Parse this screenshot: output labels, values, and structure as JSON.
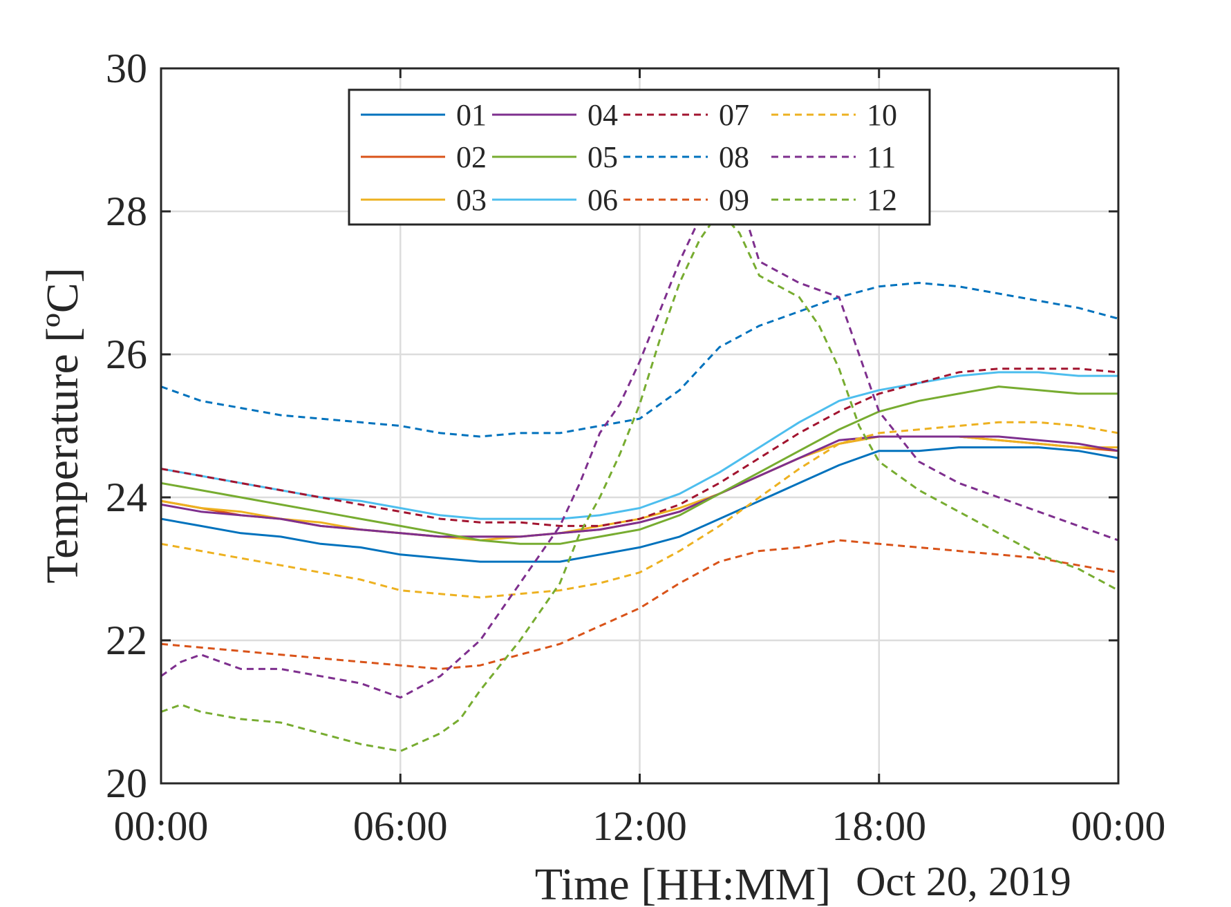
{
  "chart_data": {
    "type": "line",
    "title": "",
    "xlabel": "Time [HH:MM]",
    "xlabel_secondary": "Oct 20, 2019",
    "ylabel": "Temperature [ºC]",
    "x_unit": "hours since 00:00 on Oct 20, 2019",
    "xlim": [
      0,
      24
    ],
    "ylim": [
      20,
      30
    ],
    "x_ticks": [
      0,
      6,
      12,
      18,
      24
    ],
    "x_tick_labels": [
      "00:00",
      "06:00",
      "12:00",
      "18:00",
      "00:00"
    ],
    "y_ticks": [
      20,
      22,
      24,
      26,
      28,
      30
    ],
    "y_tick_labels": [
      "20",
      "22",
      "24",
      "26",
      "28",
      "30"
    ],
    "grid": true,
    "legend_placement": "top-center",
    "legend_columns": 4,
    "series": [
      {
        "name": "01",
        "color": "#0072BD",
        "style": "solid",
        "x": [
          0,
          1,
          2,
          3,
          4,
          5,
          6,
          7,
          8,
          9,
          10,
          11,
          12,
          13,
          14,
          15,
          16,
          17,
          18,
          19,
          20,
          21,
          22,
          23,
          24
        ],
        "y": [
          23.7,
          23.6,
          23.5,
          23.45,
          23.35,
          23.3,
          23.2,
          23.15,
          23.1,
          23.1,
          23.1,
          23.2,
          23.3,
          23.45,
          23.7,
          23.95,
          24.2,
          24.45,
          24.65,
          24.65,
          24.7,
          24.7,
          24.7,
          24.65,
          24.55
        ]
      },
      {
        "name": "02",
        "color": "#D95319",
        "style": "solid",
        "x": [
          0,
          1,
          2,
          3,
          4,
          5,
          6,
          7,
          8,
          9,
          10,
          11,
          12,
          13,
          14,
          15,
          16,
          17,
          18,
          19,
          20,
          21,
          22,
          23,
          24
        ],
        "y": [
          23.95,
          23.85,
          23.75,
          23.7,
          23.6,
          23.55,
          23.5,
          23.45,
          23.45,
          23.45,
          23.5,
          23.55,
          23.65,
          23.8,
          24.05,
          24.3,
          24.55,
          24.75,
          24.85,
          24.85,
          24.85,
          24.8,
          24.75,
          24.7,
          24.65
        ]
      },
      {
        "name": "03",
        "color": "#EDB120",
        "style": "solid",
        "x": [
          0,
          1,
          2,
          3,
          4,
          5,
          6,
          7,
          8,
          9,
          10,
          11,
          12,
          13,
          14,
          15,
          16,
          17,
          18,
          19,
          20,
          21,
          22,
          23,
          24
        ],
        "y": [
          23.95,
          23.85,
          23.8,
          23.7,
          23.65,
          23.55,
          23.5,
          23.45,
          23.4,
          23.45,
          23.5,
          23.6,
          23.7,
          23.85,
          24.05,
          24.3,
          24.55,
          24.75,
          24.85,
          24.85,
          24.85,
          24.8,
          24.75,
          24.7,
          24.7
        ]
      },
      {
        "name": "04",
        "color": "#7E2F8E",
        "style": "solid",
        "x": [
          0,
          1,
          2,
          3,
          4,
          5,
          6,
          7,
          8,
          9,
          10,
          11,
          12,
          13,
          14,
          15,
          16,
          17,
          18,
          19,
          20,
          21,
          22,
          23,
          24
        ],
        "y": [
          23.9,
          23.8,
          23.75,
          23.7,
          23.6,
          23.55,
          23.5,
          23.45,
          23.45,
          23.45,
          23.5,
          23.55,
          23.65,
          23.8,
          24.05,
          24.3,
          24.55,
          24.8,
          24.85,
          24.85,
          24.85,
          24.85,
          24.8,
          24.75,
          24.65
        ]
      },
      {
        "name": "05",
        "color": "#77AC30",
        "style": "solid",
        "x": [
          0,
          1,
          2,
          3,
          4,
          5,
          6,
          7,
          8,
          9,
          10,
          11,
          12,
          13,
          14,
          15,
          16,
          17,
          18,
          19,
          20,
          21,
          22,
          23,
          24
        ],
        "y": [
          24.2,
          24.1,
          24.0,
          23.9,
          23.8,
          23.7,
          23.6,
          23.5,
          23.4,
          23.35,
          23.35,
          23.45,
          23.55,
          23.75,
          24.05,
          24.35,
          24.65,
          24.95,
          25.2,
          25.35,
          25.45,
          25.55,
          25.5,
          25.45,
          25.45
        ]
      },
      {
        "name": "06",
        "color": "#4DBEEE",
        "style": "solid",
        "x": [
          0,
          1,
          2,
          3,
          4,
          5,
          6,
          7,
          8,
          9,
          10,
          11,
          12,
          13,
          14,
          15,
          16,
          17,
          18,
          19,
          20,
          21,
          22,
          23,
          24
        ],
        "y": [
          24.4,
          24.3,
          24.2,
          24.1,
          24.0,
          23.95,
          23.85,
          23.75,
          23.7,
          23.7,
          23.7,
          23.75,
          23.85,
          24.05,
          24.35,
          24.7,
          25.05,
          25.35,
          25.5,
          25.6,
          25.7,
          25.75,
          25.75,
          25.7,
          25.7
        ]
      },
      {
        "name": "07",
        "color": "#A2142F",
        "style": "dashed",
        "x": [
          0,
          1,
          2,
          3,
          4,
          5,
          6,
          7,
          8,
          9,
          10,
          11,
          12,
          13,
          14,
          15,
          16,
          17,
          18,
          19,
          20,
          21,
          22,
          23,
          24
        ],
        "y": [
          24.4,
          24.3,
          24.2,
          24.1,
          24.0,
          23.9,
          23.8,
          23.7,
          23.65,
          23.65,
          23.6,
          23.6,
          23.7,
          23.9,
          24.2,
          24.55,
          24.9,
          25.2,
          25.45,
          25.6,
          25.75,
          25.8,
          25.8,
          25.8,
          25.75
        ]
      },
      {
        "name": "08",
        "color": "#0072BD",
        "style": "dashed",
        "x": [
          0,
          1,
          2,
          3,
          4,
          5,
          6,
          7,
          8,
          9,
          10,
          11,
          12,
          13,
          14,
          15,
          16,
          17,
          18,
          19,
          20,
          21,
          22,
          23,
          24
        ],
        "y": [
          25.55,
          25.35,
          25.25,
          25.15,
          25.1,
          25.05,
          25.0,
          24.9,
          24.85,
          24.9,
          24.9,
          25.0,
          25.1,
          25.5,
          26.1,
          26.4,
          26.6,
          26.8,
          26.95,
          27.0,
          26.95,
          26.85,
          26.75,
          26.65,
          26.5
        ]
      },
      {
        "name": "09",
        "color": "#D95319",
        "style": "dashed",
        "x": [
          0,
          1,
          2,
          3,
          4,
          5,
          6,
          7,
          8,
          9,
          10,
          11,
          12,
          13,
          14,
          15,
          16,
          17,
          18,
          19,
          20,
          21,
          22,
          23,
          24
        ],
        "y": [
          21.95,
          21.9,
          21.85,
          21.8,
          21.75,
          21.7,
          21.65,
          21.6,
          21.65,
          21.8,
          21.95,
          22.2,
          22.45,
          22.8,
          23.1,
          23.25,
          23.3,
          23.4,
          23.35,
          23.3,
          23.25,
          23.2,
          23.15,
          23.05,
          22.95
        ]
      },
      {
        "name": "10",
        "color": "#EDB120",
        "style": "dashed",
        "x": [
          0,
          1,
          2,
          3,
          4,
          5,
          6,
          7,
          8,
          9,
          10,
          11,
          12,
          13,
          14,
          15,
          16,
          17,
          18,
          19,
          20,
          21,
          22,
          23,
          24
        ],
        "y": [
          23.35,
          23.25,
          23.15,
          23.05,
          22.95,
          22.85,
          22.7,
          22.65,
          22.6,
          22.65,
          22.7,
          22.8,
          22.95,
          23.25,
          23.6,
          24.0,
          24.4,
          24.75,
          24.9,
          24.95,
          25.0,
          25.05,
          25.05,
          25.0,
          24.9
        ]
      },
      {
        "name": "11",
        "color": "#7E2F8E",
        "style": "dashed",
        "x": [
          0,
          0.5,
          1,
          2,
          3,
          4,
          5,
          6,
          7,
          8,
          9,
          10,
          10.5,
          11,
          11.5,
          12,
          12.5,
          13,
          13.5,
          14,
          14.5,
          15,
          16,
          17,
          17.5,
          18,
          19,
          20,
          21,
          22,
          23,
          24
        ],
        "y": [
          21.5,
          21.7,
          21.8,
          21.6,
          21.6,
          21.5,
          21.4,
          21.2,
          21.5,
          22.0,
          22.8,
          23.6,
          24.2,
          24.9,
          25.3,
          25.9,
          26.6,
          27.3,
          27.9,
          28.4,
          28.2,
          27.3,
          27.0,
          26.8,
          26.0,
          25.2,
          24.5,
          24.2,
          24.0,
          23.8,
          23.6,
          23.4
        ]
      },
      {
        "name": "12",
        "color": "#77AC30",
        "style": "dashed",
        "x": [
          0,
          0.5,
          1,
          2,
          3,
          4,
          5,
          6,
          7,
          7.5,
          8,
          9,
          10,
          10.5,
          11,
          11.5,
          12,
          12.5,
          13,
          13.5,
          14,
          14.5,
          15,
          16,
          16.5,
          17,
          17.5,
          18,
          19,
          20,
          21,
          22,
          23,
          24
        ],
        "y": [
          21.0,
          21.1,
          21.0,
          20.9,
          20.85,
          20.7,
          20.55,
          20.45,
          20.7,
          20.9,
          21.3,
          22.0,
          22.8,
          23.5,
          24.0,
          24.6,
          25.3,
          26.2,
          27.0,
          27.6,
          28.0,
          27.7,
          27.1,
          26.8,
          26.4,
          25.8,
          25.0,
          24.5,
          24.1,
          23.8,
          23.5,
          23.2,
          23.0,
          22.7
        ]
      }
    ]
  }
}
